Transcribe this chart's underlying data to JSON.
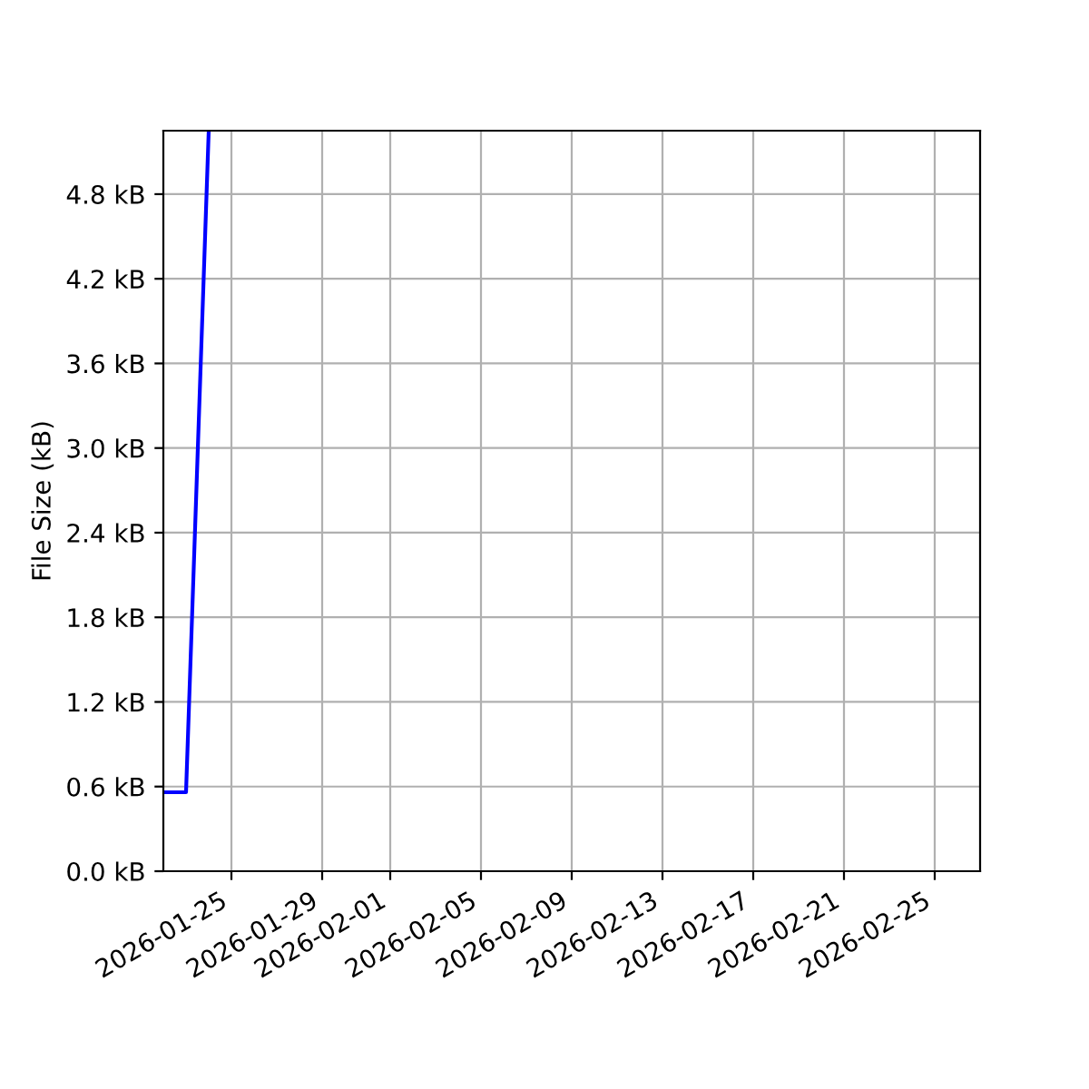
{
  "chart_data": {
    "type": "line",
    "ylabel": "File Size (kB)",
    "x": [
      "2026-01-22",
      "2026-01-23",
      "2026-01-24"
    ],
    "series": [
      {
        "color": "#0000ff",
        "values": [
          0.56,
          0.56,
          5.25
        ]
      }
    ],
    "xlim": [
      "2026-01-22",
      "2026-02-27"
    ],
    "xticks": [
      "2026-01-25",
      "2026-01-29",
      "2026-02-01",
      "2026-02-05",
      "2026-02-09",
      "2026-02-13",
      "2026-02-17",
      "2026-02-21",
      "2026-02-25"
    ],
    "ylim": [
      0,
      5.25
    ],
    "yticks": [
      {
        "value": 0,
        "label": "0.0 kB"
      },
      {
        "value": 0.6,
        "label": "0.6 kB"
      },
      {
        "value": 1.2,
        "label": "1.2 kB"
      },
      {
        "value": 1.8,
        "label": "1.8 kB"
      },
      {
        "value": 2.4,
        "label": "2.4 kB"
      },
      {
        "value": 3.0,
        "label": "3.0 kB"
      },
      {
        "value": 3.6,
        "label": "3.6 kB"
      },
      {
        "value": 4.2,
        "label": "4.2 kB"
      },
      {
        "value": 4.8,
        "label": "4.8 kB"
      }
    ],
    "grid": true,
    "legend": false
  }
}
